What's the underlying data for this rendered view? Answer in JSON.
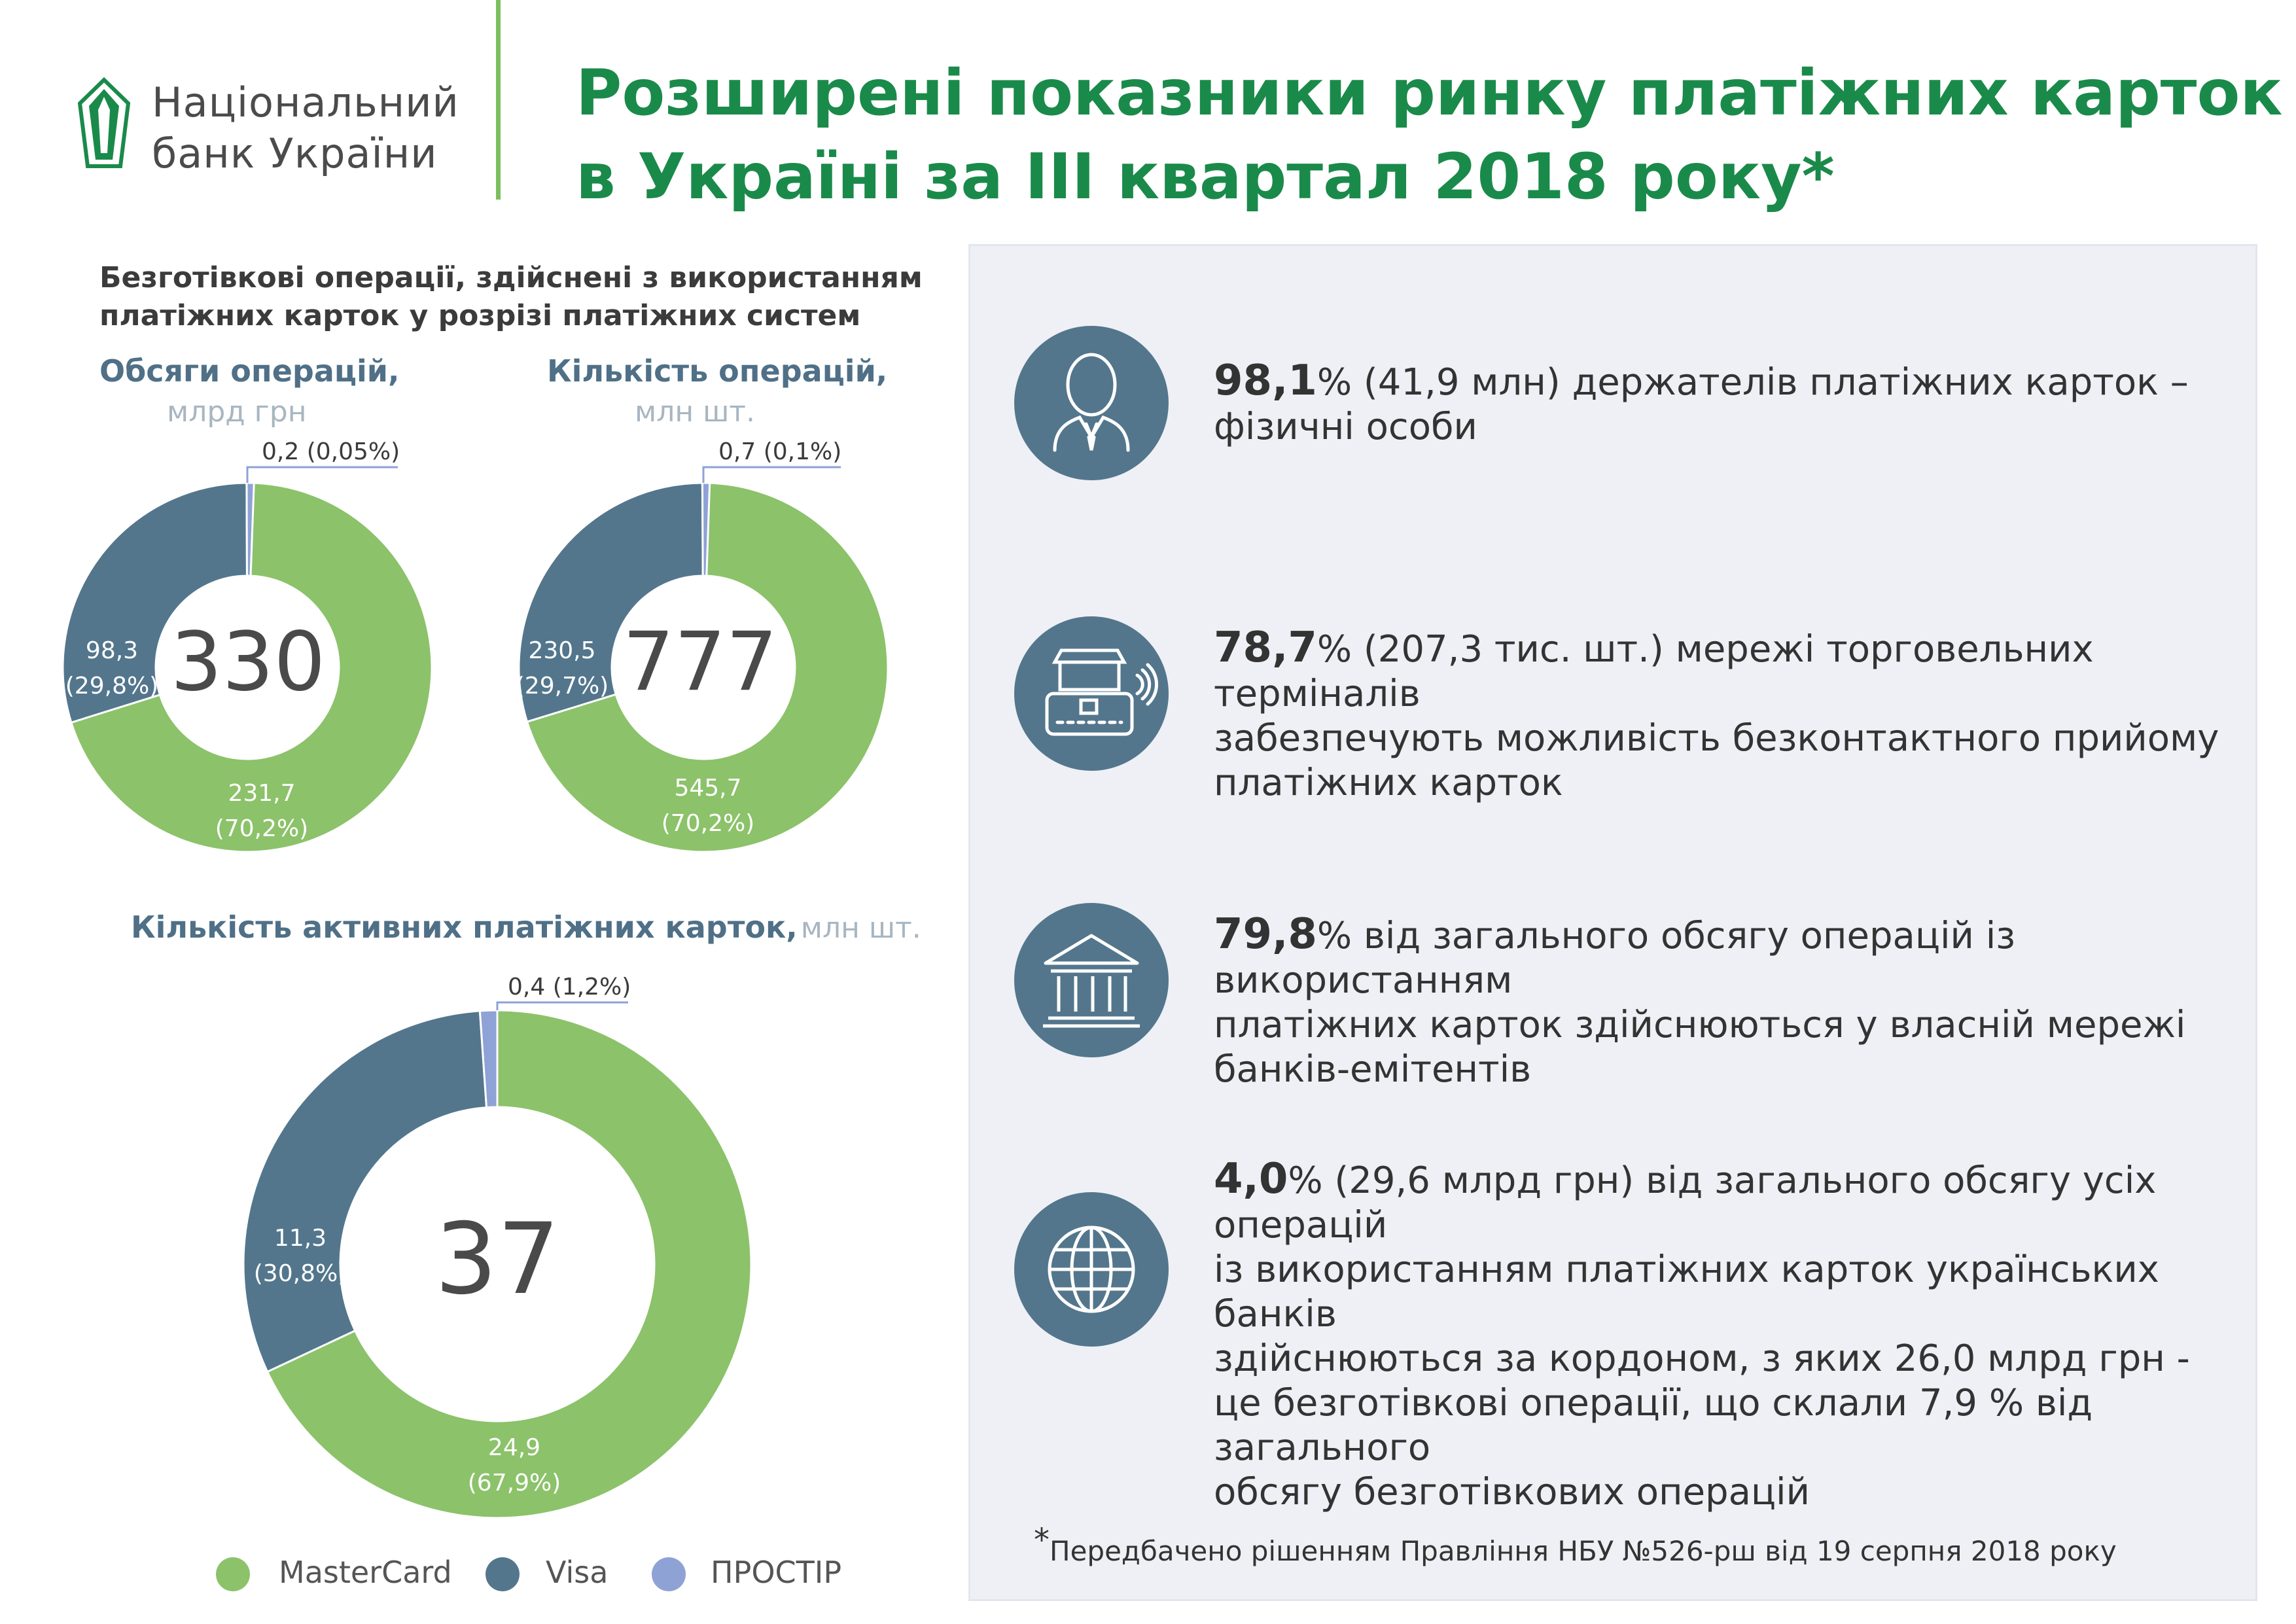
{
  "header": {
    "logo_line1": "Національний",
    "logo_line2": "банк України",
    "title_line1": "Розширені показники ринку платіжних карток",
    "title_line2": "в Україні за ІІІ квартал 2018 року*"
  },
  "section": {
    "title_line1": "Безготівкові операції, здійснені з використанням",
    "title_line2": "платіжних карток у розрізі платіжних систем"
  },
  "colors": {
    "MasterCard": "#8cc26a",
    "Visa": "#53768c",
    "ПРОСТІР": "#8ea2d6",
    "accent": "#1a8a4a"
  },
  "chart_data": [
    {
      "type": "pie",
      "title": "Обсяги операцій,",
      "unit": "млрд грн",
      "total": "330",
      "series": [
        {
          "name": "MasterCard",
          "value": 231.7,
          "percent": 70.2,
          "label1": "231,7",
          "label2": "(70,2%)"
        },
        {
          "name": "Visa",
          "value": 98.3,
          "percent": 29.8,
          "label1": "98,3",
          "label2": "(29,8%)"
        },
        {
          "name": "ПРОСТІР",
          "value": 0.2,
          "percent": 0.05,
          "label1": "0,2 (0,05%)"
        }
      ]
    },
    {
      "type": "pie",
      "title": "Кількість операцій,",
      "unit": "млн шт.",
      "total": "777",
      "series": [
        {
          "name": "MasterCard",
          "value": 545.7,
          "percent": 70.2,
          "label1": "545,7",
          "label2": "(70,2%)"
        },
        {
          "name": "Visa",
          "value": 230.5,
          "percent": 29.7,
          "label1": "230,5",
          "label2": "(29,7%)"
        },
        {
          "name": "ПРОСТІР",
          "value": 0.7,
          "percent": 0.1,
          "label1": "0,7 (0,1%)"
        }
      ]
    },
    {
      "type": "pie",
      "title": "Кількість активних платіжних карток,",
      "unit": "млн шт.",
      "total": "37",
      "series": [
        {
          "name": "MasterCard",
          "value": 24.9,
          "percent": 67.9,
          "label1": "24,9",
          "label2": "(67,9%)"
        },
        {
          "name": "Visa",
          "value": 11.3,
          "percent": 30.8,
          "label1": "11,3",
          "label2": "(30,8%)"
        },
        {
          "name": "ПРОСТІР",
          "value": 0.4,
          "percent": 1.2,
          "label1": "0,4 (1,2%)"
        }
      ]
    }
  ],
  "legend": [
    "MasterCard",
    "Visa",
    "ПРОСТІР"
  ],
  "stats": [
    {
      "icon": "person-icon",
      "bold": "98,1",
      "pct": "%",
      "line1": " (41,9 млн) держателів платіжних карток –",
      "line2": "фізичні особи"
    },
    {
      "icon": "terminal-icon",
      "bold": "78,7",
      "pct": "%",
      "line1": " (207,3 тис. шт.) мережі торговельних терміналів",
      "line2": "забезпечують можливість безконтактного прийому",
      "line3": "платіжних карток"
    },
    {
      "icon": "bank-icon",
      "bold": "79,8",
      "pct": "%",
      "line1": " від загального обсягу операцій із використанням",
      "line2": "платіжних карток здійснюються у власній мережі",
      "line3": "банків-емітентів"
    },
    {
      "icon": "globe-icon",
      "bold": "4,0",
      "pct": "%",
      "line1": " (29,6 млрд грн) від загального обсягу усіх операцій",
      "line2": "із використанням платіжних карток українських банків",
      "line3": "здійснюються за кордоном, з яких 26,0 млрд грн -",
      "line4": "це безготівкові операції, що склали 7,9 % від загального",
      "line5": "обсягу безготівкових операцій"
    }
  ],
  "footnote": "Передбачено рішенням Правління НБУ №526-рш від 19 серпня 2018 року",
  "footnote_mark": "*"
}
